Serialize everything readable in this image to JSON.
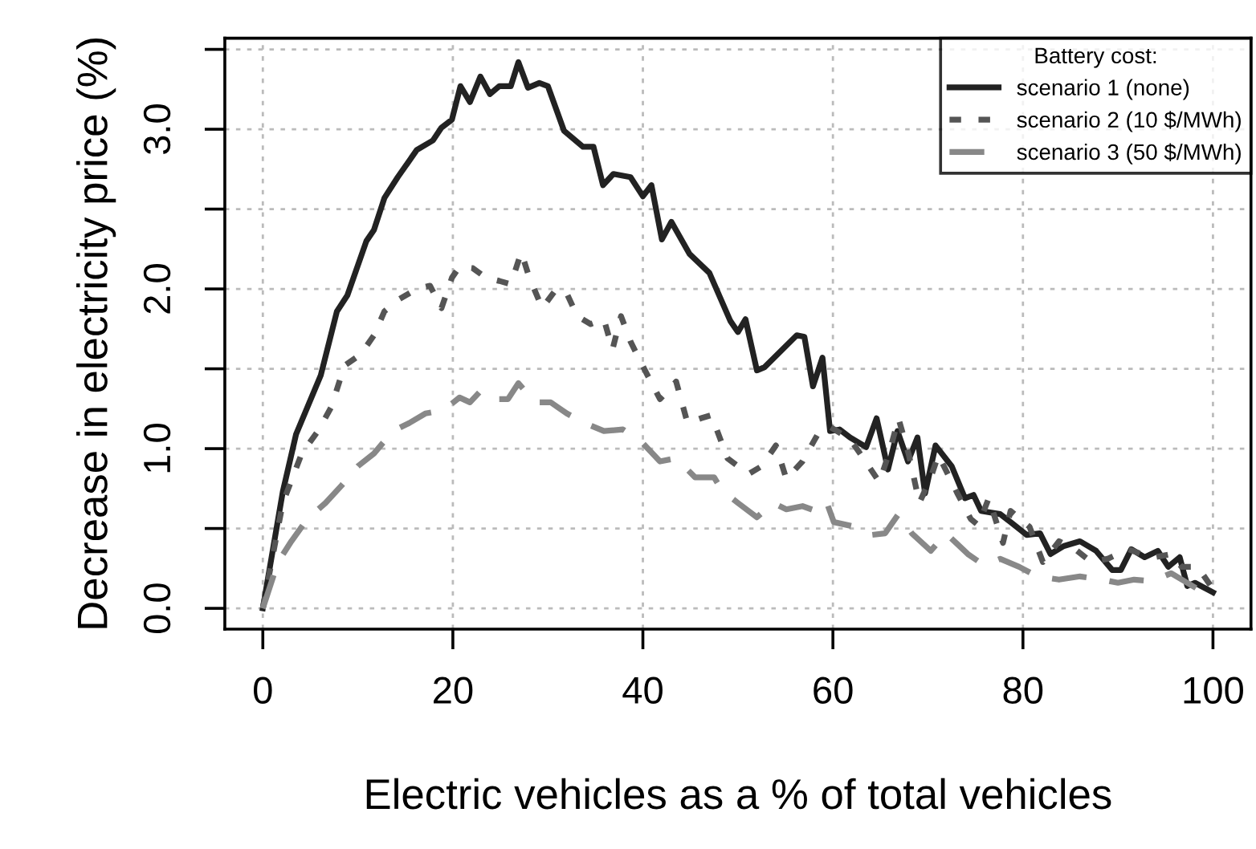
{
  "chart_data": {
    "type": "line",
    "xlabel": "Electric vehicles as a % of total vehicles",
    "ylabel": "Decrease in electricity price (%)",
    "legend_title": "Battery cost:",
    "legend": "top right",
    "grid": true,
    "xlim": [
      -4,
      104
    ],
    "ylim": [
      -0.13,
      3.57
    ],
    "xticks": [
      0,
      20,
      40,
      60,
      80,
      100
    ],
    "yticks": [
      {
        "value": 0,
        "label": "0.0"
      },
      {
        "value": 0.5,
        "label": null
      },
      {
        "value": 1,
        "label": "1.0"
      },
      {
        "value": 1.5,
        "label": null
      },
      {
        "value": 2,
        "label": "2.0"
      },
      {
        "value": 2.5,
        "label": null
      },
      {
        "value": 3,
        "label": "3.0"
      },
      {
        "value": 3.5,
        "label": null
      }
    ],
    "series": [
      {
        "name": "scenario 1 (none)",
        "color": "#222222",
        "line_style": "solid",
        "x": [
          0,
          2.1,
          3.5,
          6.1,
          7.8,
          8.9,
          10.9,
          11.7,
          12.8,
          14.2,
          16.2,
          17.9,
          18.8,
          19.9,
          20.8,
          21.8,
          22.9,
          23.9,
          24.9,
          26.1,
          26.9,
          27.9,
          29.1,
          30.0,
          31.7,
          33.7,
          34.8,
          35.8,
          36.9,
          38.7,
          40.0,
          40.9,
          42.0,
          43.0,
          44.9,
          47.0,
          49.2,
          50.0,
          50.8,
          52.0,
          52.8,
          56.2,
          57.0,
          57.9,
          58.9,
          59.7,
          60.7,
          61.8,
          63.5,
          64.6,
          65.8,
          66.8,
          67.9,
          68.9,
          69.7,
          70.8,
          72.5,
          73.9,
          74.8,
          75.6,
          77.6,
          78.7,
          80.4,
          81.8,
          82.9,
          84.3,
          86.0,
          87.7,
          89.4,
          90.3,
          91.4,
          92.8,
          94.2,
          95.3,
          96.5,
          97.3,
          98.1,
          100
        ],
        "values": [
          0,
          0.73,
          1.09,
          1.46,
          1.86,
          1.96,
          2.3,
          2.37,
          2.57,
          2.7,
          2.87,
          2.93,
          3.01,
          3.06,
          3.27,
          3.17,
          3.33,
          3.22,
          3.27,
          3.27,
          3.42,
          3.26,
          3.29,
          3.27,
          2.99,
          2.89,
          2.89,
          2.65,
          2.72,
          2.7,
          2.58,
          2.65,
          2.31,
          2.42,
          2.22,
          2.1,
          1.8,
          1.73,
          1.81,
          1.49,
          1.51,
          1.71,
          1.7,
          1.39,
          1.57,
          1.11,
          1.12,
          1.07,
          1.01,
          1.19,
          0.87,
          1.11,
          0.92,
          1.07,
          0.72,
          1.02,
          0.89,
          0.69,
          0.71,
          0.61,
          0.59,
          0.54,
          0.46,
          0.47,
          0.34,
          0.39,
          0.42,
          0.36,
          0.24,
          0.24,
          0.37,
          0.32,
          0.36,
          0.26,
          0.32,
          0.14,
          0.16,
          0.1
        ]
      },
      {
        "name": "scenario 2 (10 $/MWh)",
        "color": "#555555",
        "line_style": "dotted",
        "x": [
          0,
          2.1,
          4.1,
          5.8,
          7.2,
          8.6,
          10.3,
          11.7,
          12.8,
          14.2,
          16.2,
          17.6,
          18.8,
          19.9,
          20.7,
          22.1,
          23.5,
          24.9,
          26.1,
          27.2,
          28.0,
          29.4,
          30.9,
          32.0,
          33.1,
          34.5,
          35.9,
          36.8,
          37.7,
          38.7,
          40.4,
          41.8,
          43.5,
          44.7,
          46.1,
          47.2,
          48.9,
          51.1,
          52.5,
          54.0,
          55.1,
          56.8,
          58.4,
          59.6,
          61.8,
          63.2,
          64.9,
          66.0,
          66.9,
          68.0,
          69.1,
          70.3,
          71.1,
          73.1,
          74.5,
          75.3,
          76.4,
          77.9,
          78.7,
          80.7,
          82.1,
          83.8,
          85.5,
          87.2,
          88.9,
          91.1,
          92.5,
          93.9,
          95.6,
          96.7,
          98.4,
          100
        ],
        "values": [
          0,
          0.66,
          0.97,
          1.11,
          1.26,
          1.52,
          1.59,
          1.71,
          1.86,
          1.93,
          2.0,
          2.02,
          1.88,
          2.07,
          2.14,
          2.13,
          2.07,
          2.05,
          2.03,
          2.23,
          2.08,
          1.88,
          2.0,
          1.97,
          1.83,
          1.78,
          1.81,
          1.62,
          1.83,
          1.67,
          1.47,
          1.31,
          1.42,
          1.16,
          1.19,
          1.21,
          0.94,
          0.84,
          0.89,
          1.02,
          0.81,
          0.92,
          1.09,
          1.14,
          1.06,
          0.94,
          0.79,
          0.99,
          1.19,
          0.96,
          0.66,
          0.82,
          0.96,
          0.72,
          0.56,
          0.52,
          0.69,
          0.41,
          0.61,
          0.51,
          0.29,
          0.42,
          0.37,
          0.29,
          0.31,
          0.37,
          0.34,
          0.32,
          0.34,
          0.26,
          0.26,
          0.12
        ]
      },
      {
        "name": "scenario 3 (50 $/MWh)",
        "color": "#888888",
        "line_style": "dashed",
        "x": [
          0,
          1.6,
          3.0,
          4.7,
          6.6,
          8.3,
          10.0,
          11.7,
          13.7,
          15.4,
          17.1,
          19.0,
          20.7,
          21.8,
          22.9,
          24.1,
          25.8,
          26.9,
          28.6,
          30.3,
          32.0,
          33.9,
          35.9,
          37.9,
          39.9,
          41.8,
          43.5,
          45.5,
          47.5,
          48.3,
          50.0,
          52.0,
          53.7,
          55.1,
          56.8,
          58.2,
          59.3,
          60.1,
          62.4,
          64.1,
          65.5,
          66.9,
          68.3,
          70.3,
          71.9,
          74.2,
          75.9,
          77.6,
          79.6,
          81.5,
          83.8,
          86.0,
          88.3,
          90.0,
          91.7,
          93.6,
          95.6,
          97.0,
          98.7,
          100
        ],
        "values": [
          0,
          0.29,
          0.42,
          0.56,
          0.66,
          0.77,
          0.89,
          0.97,
          1.11,
          1.16,
          1.22,
          1.24,
          1.32,
          1.29,
          1.36,
          1.31,
          1.31,
          1.41,
          1.29,
          1.29,
          1.22,
          1.16,
          1.11,
          1.12,
          1.04,
          0.92,
          0.94,
          0.82,
          0.82,
          0.74,
          0.66,
          0.57,
          0.66,
          0.62,
          0.64,
          0.61,
          0.67,
          0.54,
          0.51,
          0.46,
          0.47,
          0.59,
          0.47,
          0.36,
          0.47,
          0.34,
          0.27,
          0.31,
          0.26,
          0.2,
          0.18,
          0.2,
          0.18,
          0.16,
          0.18,
          0.17,
          0.22,
          0.17,
          0.11,
          0.09
        ]
      }
    ]
  }
}
